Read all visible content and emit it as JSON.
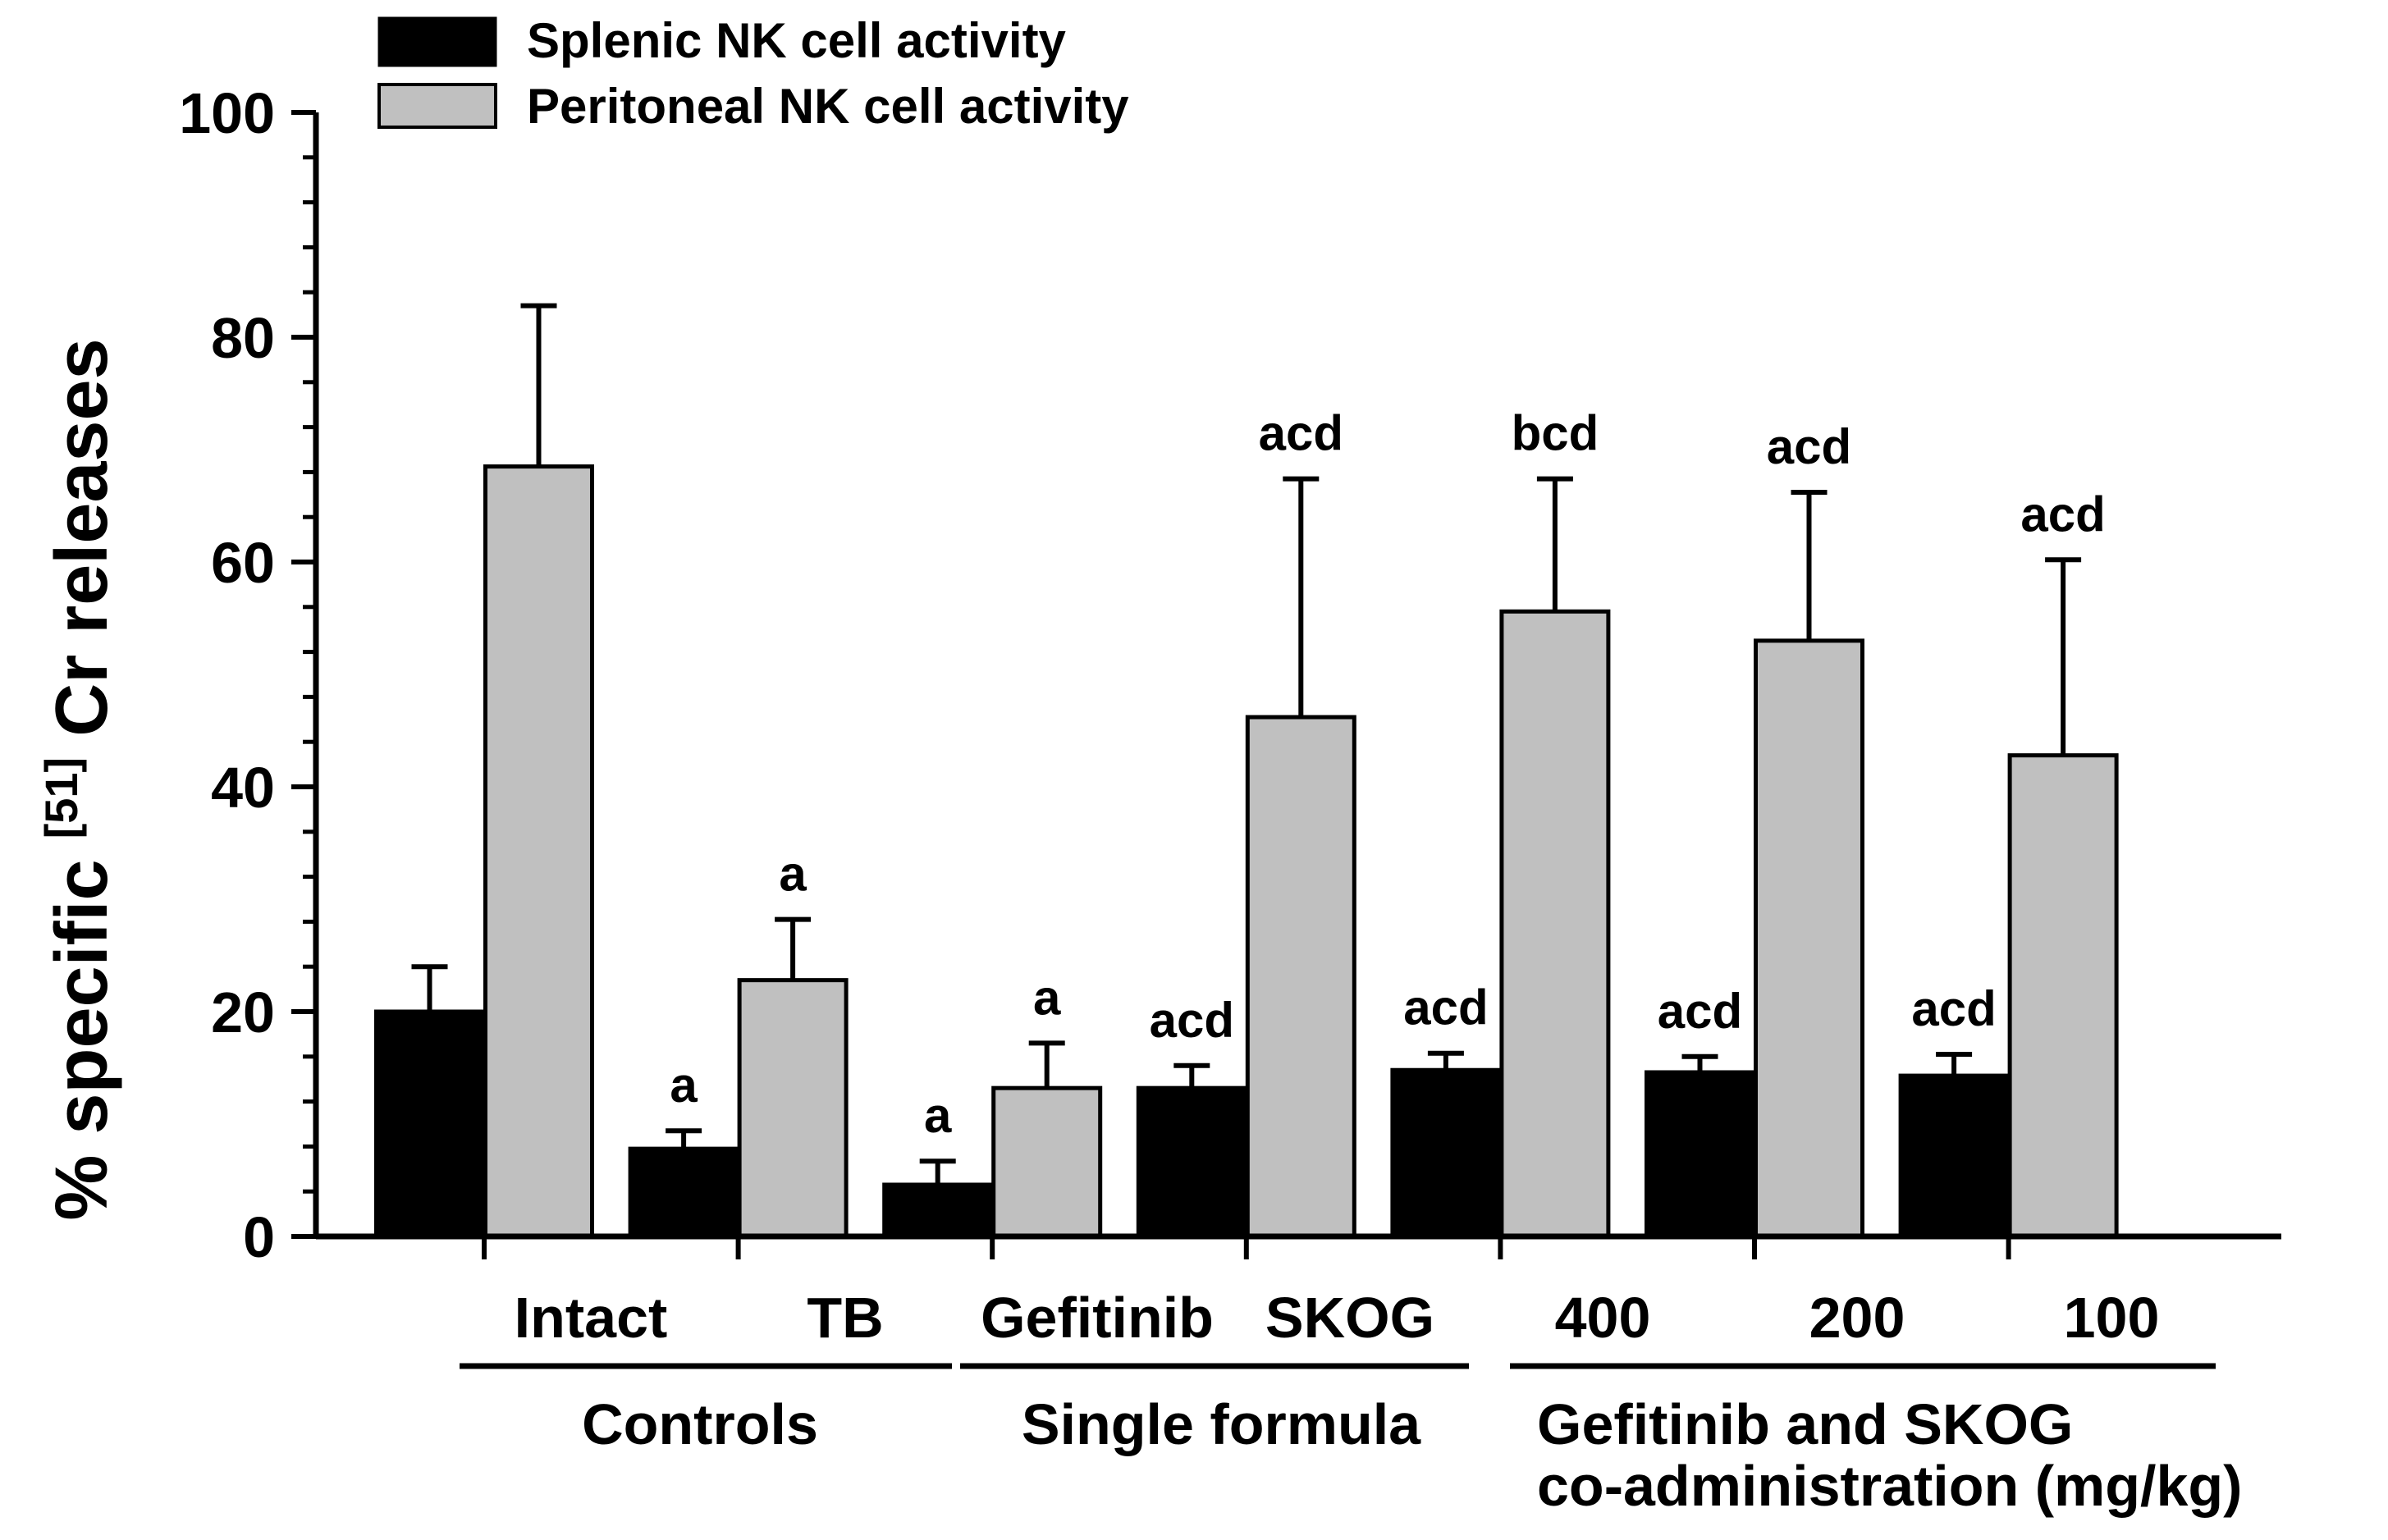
{
  "chart_data": {
    "type": "bar",
    "title": "",
    "ylabel": {
      "prefix": "% specific ",
      "superscript": "[51]",
      "suffix": " Cr releases"
    },
    "xlabel": "",
    "ylim": [
      0,
      100
    ],
    "yticks": [
      0,
      20,
      40,
      60,
      80,
      100
    ],
    "minor_ticks_per_major": 4,
    "categories": [
      "Intact",
      "TB",
      "Gefitinib",
      "SKOG",
      "400",
      "200",
      "100"
    ],
    "groups": [
      {
        "label_lines": [
          "Controls"
        ],
        "categories": [
          "Intact",
          "TB"
        ]
      },
      {
        "label_lines": [
          "Single formula"
        ],
        "categories": [
          "Gefitinib",
          "SKOG"
        ]
      },
      {
        "label_lines": [
          "Gefitinib and SKOG",
          "co-administration (mg/kg)"
        ],
        "categories": [
          "400",
          "200",
          "100"
        ]
      }
    ],
    "series": [
      {
        "name": "Splenic NK cell activity",
        "color": "#000000",
        "values": [
          20,
          7.8,
          4.6,
          13.2,
          14.8,
          14.6,
          14.3
        ],
        "errors": [
          4,
          1.6,
          2.1,
          2.0,
          1.5,
          1.4,
          1.9
        ],
        "annotations": [
          "",
          "a",
          "a",
          "acd",
          "acd",
          "acd",
          "acd"
        ]
      },
      {
        "name": "Peritoneal NK cell activity",
        "color": "#c0c0c0",
        "values": [
          68.5,
          22.8,
          13.2,
          46.2,
          55.6,
          53,
          42.8
        ],
        "errors": [
          14.3,
          5.4,
          4.0,
          21.2,
          11.8,
          13.2,
          17.4
        ],
        "annotations": [
          "",
          "a",
          "a",
          "acd",
          "bcd",
          "acd",
          "acd"
        ]
      }
    ]
  }
}
